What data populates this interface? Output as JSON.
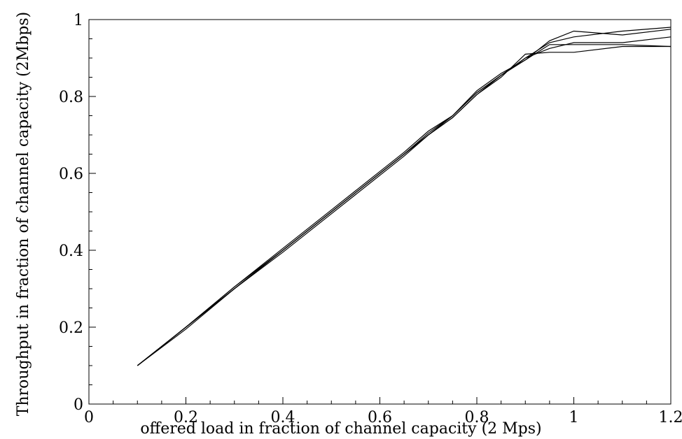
{
  "chart_data": {
    "type": "line",
    "title": "",
    "xlabel": "offered load in fraction of channel capacity (2 Mps)",
    "ylabel": "Throughput in fraction of channel capacity (2Mbps)",
    "xlim": [
      0,
      1.2
    ],
    "ylim": [
      0,
      1
    ],
    "grid": false,
    "legend": "none",
    "x_ticks": [
      {
        "value": 0,
        "label": "0"
      },
      {
        "value": 0.2,
        "label": "0.2"
      },
      {
        "value": 0.4,
        "label": "0.4"
      },
      {
        "value": 0.6,
        "label": "0.6"
      },
      {
        "value": 0.8,
        "label": "0.8"
      },
      {
        "value": 1,
        "label": "1"
      },
      {
        "value": 1.2,
        "label": "1.2"
      }
    ],
    "y_ticks": [
      {
        "value": 0,
        "label": "0"
      },
      {
        "value": 0.2,
        "label": "0.2"
      },
      {
        "value": 0.4,
        "label": "0.4"
      },
      {
        "value": 0.6,
        "label": "0.6"
      },
      {
        "value": 0.8,
        "label": "0.8"
      },
      {
        "value": 1,
        "label": "1"
      }
    ],
    "series": [
      {
        "x": [
          0.1,
          0.2,
          0.3,
          0.4,
          0.5,
          0.6,
          0.65,
          0.7,
          0.75,
          0.8,
          0.85,
          0.9,
          0.95,
          1.0,
          1.1,
          1.2
        ],
        "y": [
          0.1,
          0.2,
          0.305,
          0.405,
          0.505,
          0.605,
          0.655,
          0.71,
          0.75,
          0.815,
          0.86,
          0.895,
          0.945,
          0.97,
          0.96,
          0.975
        ]
      },
      {
        "x": [
          0.1,
          0.2,
          0.3,
          0.4,
          0.5,
          0.6,
          0.65,
          0.7,
          0.75,
          0.8,
          0.85,
          0.9,
          0.95,
          1.0,
          1.1,
          1.2
        ],
        "y": [
          0.1,
          0.2,
          0.3,
          0.4,
          0.5,
          0.6,
          0.65,
          0.705,
          0.75,
          0.81,
          0.855,
          0.9,
          0.94,
          0.955,
          0.97,
          0.98
        ]
      },
      {
        "x": [
          0.1,
          0.2,
          0.3,
          0.4,
          0.5,
          0.6,
          0.65,
          0.7,
          0.75,
          0.8,
          0.85,
          0.9,
          0.95,
          1.0,
          1.1,
          1.2
        ],
        "y": [
          0.1,
          0.2,
          0.3,
          0.4,
          0.5,
          0.6,
          0.65,
          0.7,
          0.745,
          0.805,
          0.855,
          0.895,
          0.935,
          0.935,
          0.935,
          0.93
        ]
      },
      {
        "x": [
          0.1,
          0.2,
          0.3,
          0.4,
          0.5,
          0.6,
          0.65,
          0.7,
          0.75,
          0.8,
          0.85,
          0.9,
          0.95,
          1.0,
          1.1,
          1.2
        ],
        "y": [
          0.1,
          0.195,
          0.3,
          0.395,
          0.495,
          0.595,
          0.645,
          0.7,
          0.745,
          0.805,
          0.85,
          0.91,
          0.915,
          0.915,
          0.93,
          0.93
        ]
      },
      {
        "x": [
          0.1,
          0.2,
          0.3,
          0.4,
          0.5,
          0.6,
          0.65,
          0.7,
          0.75,
          0.8,
          0.85,
          0.9,
          0.95,
          1.0,
          1.1,
          1.2
        ],
        "y": [
          0.1,
          0.2,
          0.305,
          0.4,
          0.5,
          0.6,
          0.65,
          0.7,
          0.75,
          0.81,
          0.855,
          0.9,
          0.925,
          0.94,
          0.94,
          0.955
        ]
      }
    ]
  }
}
